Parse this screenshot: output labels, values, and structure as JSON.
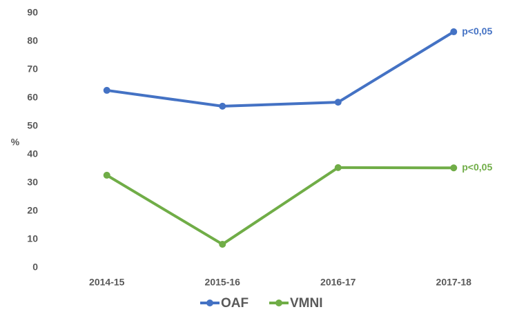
{
  "chart_data": {
    "type": "line",
    "y_label": "%",
    "categories": [
      "2014-15",
      "2015-16",
      "2016-17",
      "2017-18"
    ],
    "series": [
      {
        "name": "OAF",
        "color": "#4472c4",
        "values": [
          62.7,
          57.1,
          58.5,
          83.4
        ],
        "annotation": "p<0,05"
      },
      {
        "name": "VMNI",
        "color": "#70ad47",
        "values": [
          32.7,
          8.3,
          35.4,
          35.3
        ],
        "annotation": "p<0,05"
      }
    ],
    "ylim": [
      0,
      90
    ],
    "yticks": [
      0,
      10,
      20,
      30,
      40,
      50,
      60,
      70,
      80,
      90
    ],
    "grid": false
  }
}
